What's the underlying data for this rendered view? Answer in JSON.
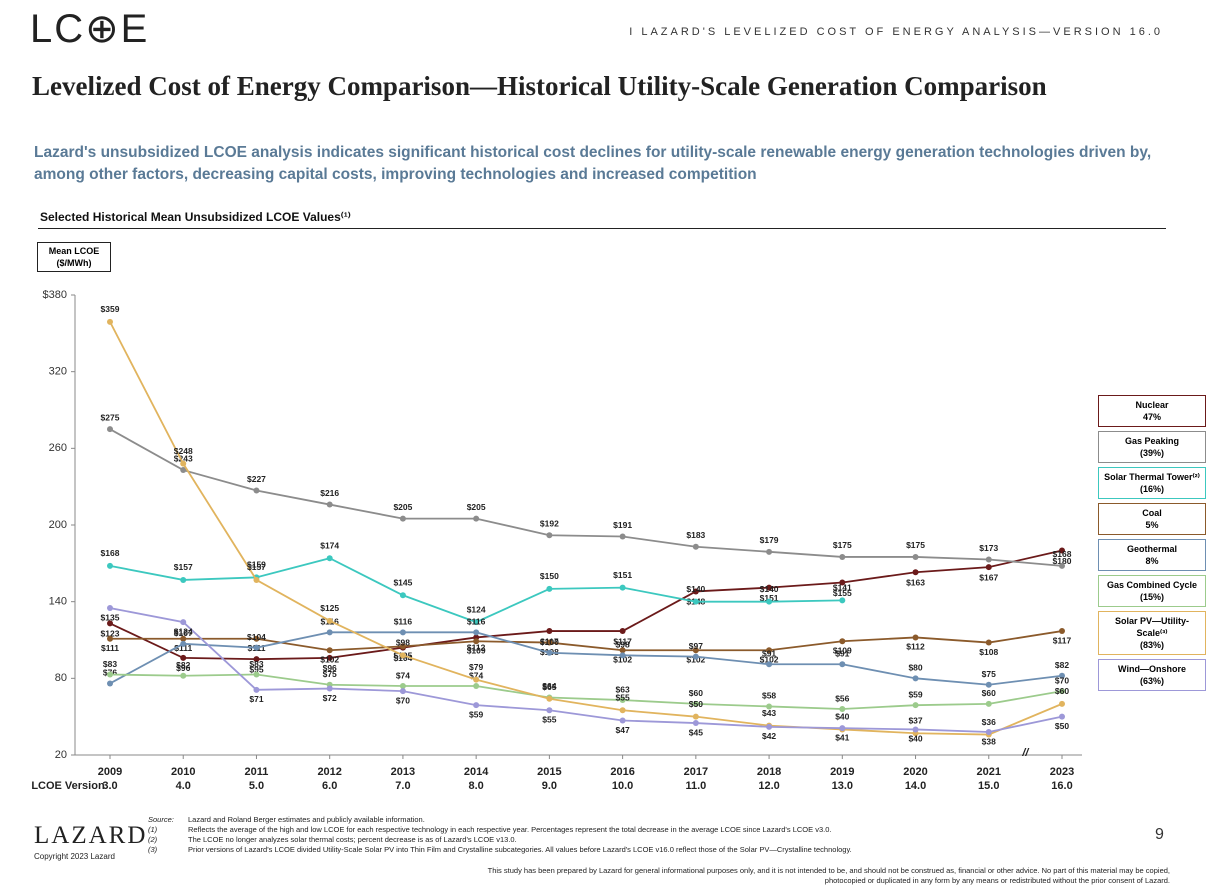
{
  "header": {
    "logo": "LC⊕E",
    "text": "I   LAZARD'S LEVELIZED COST OF ENERGY ANALYSIS—VERSION 16.0"
  },
  "title": "Levelized Cost of Energy Comparison—Historical Utility-Scale Generation Comparison",
  "subtitle": "Lazard's unsubsidized LCOE analysis indicates significant historical cost declines for utility-scale renewable energy generation technologies driven by, among other factors, decreasing capital costs, improving technologies and increased competition",
  "chart_data": {
    "type": "line",
    "title": "Selected Historical Mean Unsubsidized LCOE Values⁽¹⁾",
    "y_label": [
      "Mean LCOE",
      "($/MWh)"
    ],
    "categories": [
      "2009",
      "2010",
      "2011",
      "2012",
      "2013",
      "2014",
      "2015",
      "2016",
      "2017",
      "2018",
      "2019",
      "2020",
      "2021",
      "2023"
    ],
    "version_label": "LCOE Version",
    "versions": [
      "3.0",
      "4.0",
      "5.0",
      "6.0",
      "7.0",
      "8.0",
      "9.0",
      "10.0",
      "11.0",
      "12.0",
      "13.0",
      "14.0",
      "15.0",
      "16.0"
    ],
    "axis_break": "//",
    "ylim": [
      20,
      380
    ],
    "yticks": [
      {
        "value": 380,
        "label": "$380"
      },
      320,
      260,
      200,
      140,
      80,
      20
    ],
    "series": [
      {
        "name": "Nuclear",
        "legend_note": "47%",
        "color": "#6b1a1a",
        "values": [
          123,
          96,
          95,
          96,
          104,
          112,
          117,
          117,
          148,
          151,
          155,
          163,
          167,
          180
        ],
        "value_labels": [
          "$123",
          "$96",
          "$95",
          "$96",
          "$104",
          "$112",
          "$117",
          "$117",
          "$148",
          "$151",
          "$155",
          "$163",
          "$167",
          "$180"
        ]
      },
      {
        "name": "Gas Peaking",
        "legend_note": "(39%)",
        "color": "#8c8c8c",
        "values": [
          275,
          243,
          227,
          216,
          205,
          205,
          192,
          191,
          183,
          179,
          175,
          175,
          173,
          168
        ],
        "value_labels": [
          "$275",
          "$243",
          "$227",
          "$216",
          "$205",
          "$205",
          "$192",
          "$191",
          "$183",
          "$179",
          "$175",
          "$175",
          "$173",
          "$168"
        ]
      },
      {
        "name": "Solar Thermal Tower⁽²⁾",
        "legend_note": "(16%)",
        "color": "#3cc8bf",
        "values": [
          168,
          157,
          159,
          174,
          145,
          124,
          150,
          151,
          140,
          140,
          141,
          null,
          null,
          null
        ],
        "value_labels": [
          "$168",
          "$157",
          "$159",
          "$174",
          "$145",
          "$124",
          "$150",
          "$151",
          "$140",
          "$140",
          "$141",
          null,
          null,
          null
        ]
      },
      {
        "name": "Coal",
        "legend_note": "5%",
        "color": "#8b5a2b",
        "values": [
          111,
          111,
          111,
          102,
          105,
          109,
          108,
          102,
          102,
          102,
          109,
          112,
          108,
          117
        ],
        "value_labels": [
          "$111",
          "$111",
          "$111",
          "$102",
          "$105",
          "$109",
          "$108",
          "$102",
          "$102",
          "$102",
          "$109",
          "$112",
          "$108",
          "$117"
        ]
      },
      {
        "name": "Geothermal",
        "legend_note": "8%",
        "color": "#6e8fb2",
        "values": [
          76,
          107,
          104,
          116,
          116,
          116,
          100,
          98,
          97,
          91,
          91,
          80,
          75,
          82
        ],
        "value_labels": [
          "$76",
          "$107",
          "$104",
          "$116",
          "$116",
          "$116",
          "$100",
          "$98",
          "$97",
          "$91",
          "$91",
          "$80",
          "$75",
          "$82"
        ]
      },
      {
        "name": "Gas Combined Cycle",
        "legend_note": "(15%)",
        "color": "#9ccb8c",
        "values": [
          83,
          82,
          83,
          75,
          74,
          74,
          65,
          63,
          60,
          58,
          56,
          59,
          60,
          70
        ],
        "value_labels": [
          "$83",
          "$82",
          "$83",
          "$75",
          "$74",
          "$74",
          "$65",
          "$63",
          "$60",
          "$58",
          "$56",
          "$59",
          "$60",
          "$70"
        ]
      },
      {
        "name": "Solar PV—Utility-Scale⁽³⁾",
        "legend_note": "(83%)",
        "color": "#e1b45e",
        "values": [
          359,
          248,
          157,
          125,
          98,
          79,
          64,
          55,
          50,
          43,
          40,
          37,
          36,
          60
        ],
        "value_labels": [
          "$359",
          "$248",
          "$157",
          "$125",
          "$98",
          "$79",
          "$64",
          "$55",
          "$50",
          "$43",
          "$40",
          "$37",
          "$36",
          "$60"
        ]
      },
      {
        "name": "Wind—Onshore",
        "legend_note": "(63%)",
        "color": "#9d98d8",
        "values": [
          135,
          124,
          71,
          72,
          70,
          59,
          55,
          47,
          45,
          42,
          41,
          40,
          38,
          50
        ],
        "value_labels": [
          "$135",
          "$124",
          "$71",
          "$72",
          "$70",
          "$59",
          "$55",
          "$47",
          "$45",
          "$42",
          "$41",
          "$40",
          "$38",
          "$50"
        ]
      }
    ]
  },
  "footer": {
    "logo": "LAZARD",
    "copyright": "Copyright 2023 Lazard",
    "page": "9",
    "notes": [
      {
        "marker": "Source:",
        "text": "Lazard and Roland Berger estimates and publicly available information."
      },
      {
        "marker": "(1)",
        "text": "Reflects the average of the high and low LCOE for each respective technology in each respective year. Percentages represent the total decrease in the average LCOE since Lazard's LCOE v3.0."
      },
      {
        "marker": "(2)",
        "text": "The LCOE no longer analyzes solar thermal costs; percent decrease is as of Lazard's LCOE v13.0."
      },
      {
        "marker": "(3)",
        "text": "Prior versions of Lazard's LCOE divided Utility-Scale Solar PV into Thin Film and Crystalline subcategories. All values before Lazard's LCOE v16.0 reflect those of the Solar PV—Crystalline technology."
      }
    ],
    "disclaimer": "This study has been prepared by Lazard for general informational purposes only, and it is not intended to be, and should not be construed as, financial or other advice. No part of this material may be copied, photocopied or duplicated in any form by any means or redistributed without the prior consent of Lazard."
  }
}
